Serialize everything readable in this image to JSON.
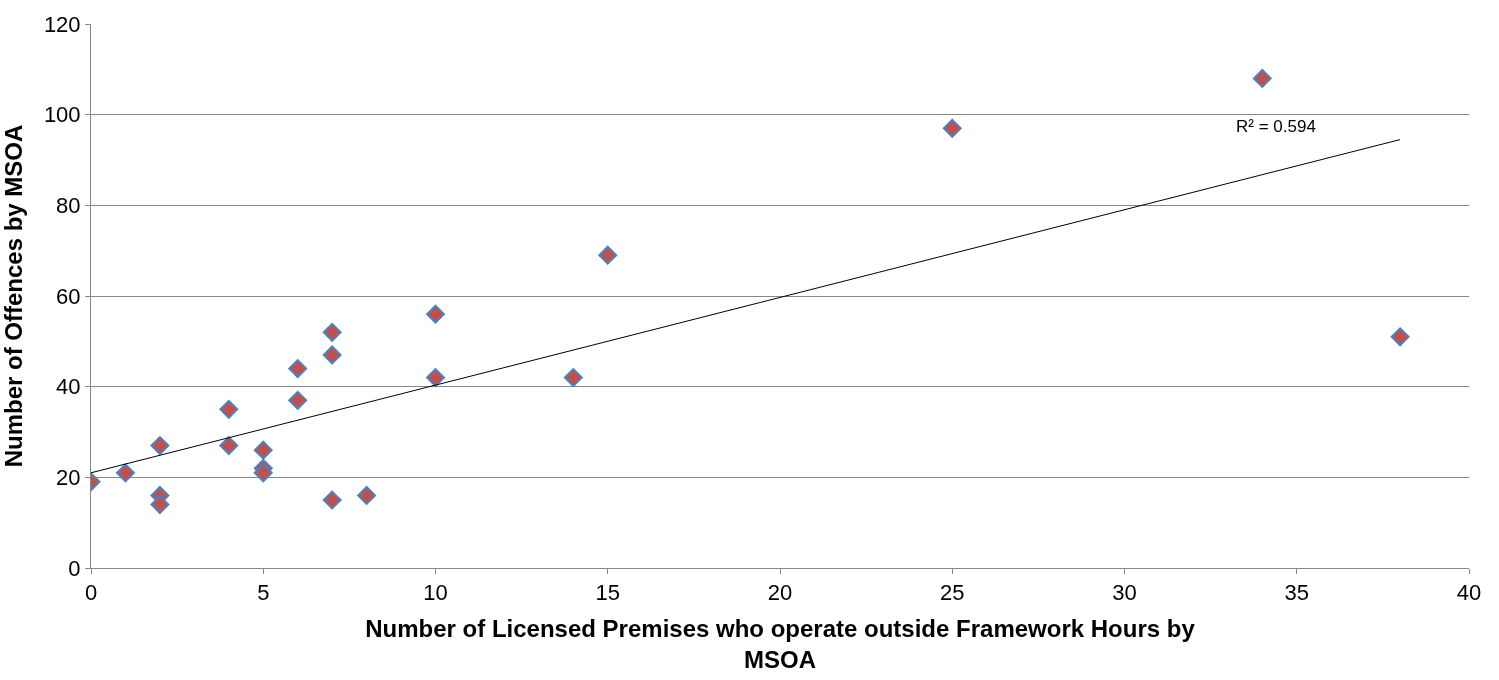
{
  "chart_data": {
    "type": "scatter",
    "xlabel": "Number of Licensed Premises who operate outside Framework Hours by MSOA",
    "ylabel": "Number of Offences by MSOA",
    "xlim": [
      0,
      40
    ],
    "xticks": [
      0,
      5,
      10,
      15,
      20,
      25,
      30,
      35,
      40
    ],
    "ylim": [
      0,
      120
    ],
    "yticks": [
      0,
      20,
      40,
      60,
      80,
      100,
      120
    ],
    "grid": "y",
    "marker": "diamond",
    "series": [
      {
        "color": "#c0504d",
        "x": [
          0,
          1,
          2,
          2,
          2,
          4,
          4,
          5,
          5,
          5,
          6,
          6,
          7,
          7,
          7,
          8,
          10,
          10,
          14,
          15,
          25,
          34,
          38
        ],
        "values": [
          19,
          21,
          27,
          16,
          14,
          35,
          27,
          26,
          22,
          21,
          44,
          37,
          52,
          47,
          15,
          16,
          56,
          42,
          42,
          69,
          97,
          108,
          51
        ]
      },
      {
        "type": "line",
        "color": "#000000",
        "x": [
          0,
          38
        ],
        "values": [
          21,
          94.5
        ],
        "marker": "none"
      }
    ],
    "annotations": [
      "R² = 0.594"
    ]
  }
}
